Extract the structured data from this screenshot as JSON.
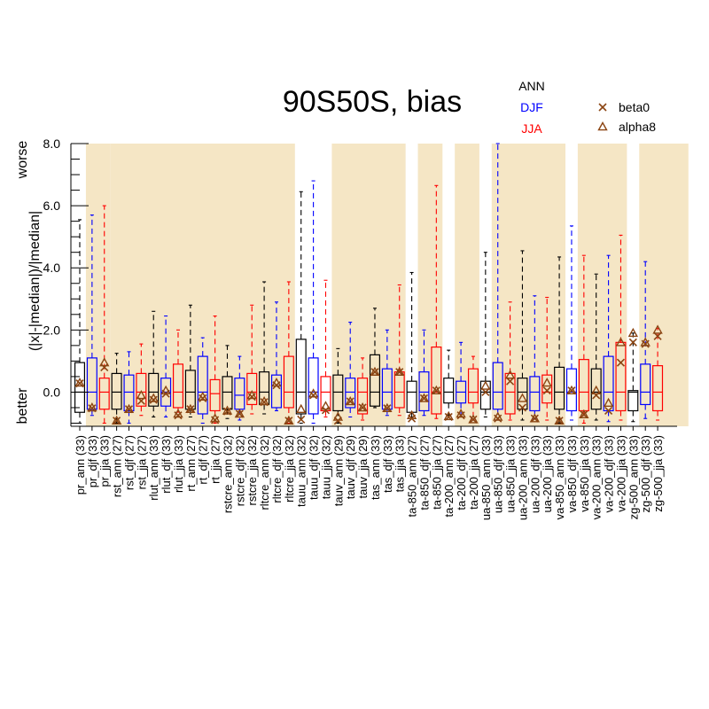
{
  "colors": {
    "ANN": "#000000",
    "DJF": "#0000ff",
    "JJA": "#ff0000",
    "shade": "#f5e6c5",
    "marker": "#8b4513"
  },
  "chart_data": {
    "type": "box",
    "title": "90S50S, bias",
    "ylabel": "(|x|-|median|)/|median|",
    "ylabel_top": "worse",
    "ylabel_bottom": "better",
    "ylim": [
      -1.1,
      8.0
    ],
    "yticks": [
      0.0,
      2.0,
      4.0,
      6.0,
      8.0
    ],
    "ytick_labels": [
      "0.0",
      "2.0",
      "4.0",
      "6.0",
      "8.0"
    ],
    "legend_seasons": [
      {
        "label": "ANN",
        "key": "ANN"
      },
      {
        "label": "DJF",
        "key": "DJF"
      },
      {
        "label": "JJA",
        "key": "JJA"
      }
    ],
    "legend_markers": [
      {
        "label": "beta0",
        "symbol": "x"
      },
      {
        "label": "alpha8",
        "symbol": "triangle"
      }
    ],
    "shaded_variable_groups": [
      [
        1,
        2
      ],
      [
        3,
        17
      ],
      [
        21,
        26
      ],
      [
        28,
        29
      ],
      [
        31,
        32
      ],
      [
        34,
        39
      ],
      [
        41,
        44
      ],
      [
        46,
        49
      ]
    ],
    "boxes": [
      {
        "label": "pr_ann (33)",
        "season": "ANN",
        "wl": -1.0,
        "q1": -0.65,
        "med": 0.0,
        "q3": 0.95,
        "wh": 5.55,
        "beta0": 0.28,
        "alpha8": 0.3
      },
      {
        "label": "pr_djf (33)",
        "season": "DJF",
        "wl": -0.75,
        "q1": -0.55,
        "med": 0.0,
        "q3": 1.1,
        "wh": 5.7,
        "beta0": -0.52,
        "alpha8": -0.5
      },
      {
        "label": "pr_jja (33)",
        "season": "JJA",
        "wl": -1.0,
        "q1": -0.55,
        "med": 0.0,
        "q3": 0.45,
        "wh": 6.0,
        "beta0": 0.8,
        "alpha8": 0.95
      },
      {
        "label": "rst_ann (27)",
        "season": "ANN",
        "wl": -1.0,
        "q1": -0.55,
        "med": 0.0,
        "q3": 0.6,
        "wh": 1.25,
        "beta0": -0.92,
        "alpha8": -0.92
      },
      {
        "label": "rst_djf (27)",
        "season": "DJF",
        "wl": -1.0,
        "q1": -0.6,
        "med": 0.0,
        "q3": 0.55,
        "wh": 1.3,
        "beta0": -0.55,
        "alpha8": -0.55
      },
      {
        "label": "rst_jja (27)",
        "season": "JJA",
        "wl": -0.75,
        "q1": -0.45,
        "med": 0.0,
        "q3": 0.6,
        "wh": 1.55,
        "beta0": -0.28,
        "alpha8": -0.1
      },
      {
        "label": "rlut_ann (33)",
        "season": "ANN",
        "wl": -0.8,
        "q1": -0.45,
        "med": 0.0,
        "q3": 0.6,
        "wh": 2.6,
        "beta0": -0.25,
        "alpha8": -0.2
      },
      {
        "label": "rlut_djf (33)",
        "season": "DJF",
        "wl": -0.8,
        "q1": -0.45,
        "med": 0.0,
        "q3": 0.45,
        "wh": 2.45,
        "beta0": -0.05,
        "alpha8": 0.05
      },
      {
        "label": "rlut_jja (33)",
        "season": "JJA",
        "wl": -0.8,
        "q1": -0.5,
        "med": 0.0,
        "q3": 0.9,
        "wh": 2.0,
        "beta0": -0.75,
        "alpha8": -0.7
      },
      {
        "label": "rt_ann (27)",
        "season": "ANN",
        "wl": -0.8,
        "q1": -0.55,
        "med": 0.0,
        "q3": 0.7,
        "wh": 2.8,
        "beta0": -0.55,
        "alpha8": -0.55
      },
      {
        "label": "rt_djf (27)",
        "season": "DJF",
        "wl": -1.0,
        "q1": -0.7,
        "med": 0.0,
        "q3": 1.15,
        "wh": 1.75,
        "beta0": -0.2,
        "alpha8": -0.15
      },
      {
        "label": "rt_jja (27)",
        "season": "JJA",
        "wl": -1.0,
        "q1": -0.6,
        "med": -0.05,
        "q3": 0.4,
        "wh": 2.45,
        "beta0": -0.9,
        "alpha8": -0.85
      },
      {
        "label": "rstcre_ann (32)",
        "season": "ANN",
        "wl": -0.85,
        "q1": -0.55,
        "med": 0.0,
        "q3": 0.5,
        "wh": 1.5,
        "beta0": -0.62,
        "alpha8": -0.6
      },
      {
        "label": "rstcre_djf (32)",
        "season": "DJF",
        "wl": -0.9,
        "q1": -0.55,
        "med": -0.1,
        "q3": 0.45,
        "wh": 1.15,
        "beta0": -0.7,
        "alpha8": -0.7
      },
      {
        "label": "rstcre_jja (32)",
        "season": "JJA",
        "wl": -0.7,
        "q1": -0.4,
        "med": 0.0,
        "q3": 0.6,
        "wh": 2.8,
        "beta0": -0.15,
        "alpha8": -0.1
      },
      {
        "label": "rltcre_ann (32)",
        "season": "ANN",
        "wl": -0.7,
        "q1": -0.4,
        "med": 0.0,
        "q3": 0.65,
        "wh": 3.55,
        "beta0": -0.32,
        "alpha8": -0.3
      },
      {
        "label": "rltcre_djf (32)",
        "season": "DJF",
        "wl": -0.6,
        "q1": -0.5,
        "med": 0.2,
        "q3": 0.55,
        "wh": 2.9,
        "beta0": 0.22,
        "alpha8": 0.3
      },
      {
        "label": "rltcre_jja (32)",
        "season": "JJA",
        "wl": -1.0,
        "q1": -0.5,
        "med": 0.0,
        "q3": 1.15,
        "wh": 3.55,
        "beta0": -0.92,
        "alpha8": -0.92
      },
      {
        "label": "tauu_ann (32)",
        "season": "ANN",
        "wl": -1.0,
        "q1": -0.7,
        "med": 0.0,
        "q3": 1.7,
        "wh": 6.45,
        "beta0": -0.88,
        "alpha8": -0.55
      },
      {
        "label": "tauu_djf (32)",
        "season": "DJF",
        "wl": -1.0,
        "q1": -0.7,
        "med": 0.0,
        "q3": 1.1,
        "wh": 6.8,
        "beta0": -0.1,
        "alpha8": -0.05
      },
      {
        "label": "tauu_jja (32)",
        "season": "JJA",
        "wl": -0.8,
        "q1": -0.6,
        "med": 0.0,
        "q3": 0.5,
        "wh": 3.6,
        "beta0": -0.58,
        "alpha8": -0.45
      },
      {
        "label": "tauv_ann (29)",
        "season": "ANN",
        "wl": -1.0,
        "q1": -0.6,
        "med": 0.0,
        "q3": 0.55,
        "wh": 1.4,
        "beta0": -0.92,
        "alpha8": -0.8
      },
      {
        "label": "tauv_djf (29)",
        "season": "DJF",
        "wl": -0.8,
        "q1": -0.5,
        "med": 0.0,
        "q3": 0.45,
        "wh": 2.25,
        "beta0": -0.3,
        "alpha8": -0.3
      },
      {
        "label": "tauv_jja (29)",
        "season": "JJA",
        "wl": -0.9,
        "q1": -0.7,
        "med": 0.0,
        "q3": 0.45,
        "wh": 1.1,
        "beta0": -0.5,
        "alpha8": -0.5
      },
      {
        "label": "tas_ann (33)",
        "season": "ANN",
        "wl": -0.5,
        "q1": -0.45,
        "med": 0.0,
        "q3": 1.2,
        "wh": 2.7,
        "beta0": 0.65,
        "alpha8": 0.65
      },
      {
        "label": "tas_djf (33)",
        "season": "DJF",
        "wl": -0.75,
        "q1": -0.55,
        "med": 0.0,
        "q3": 0.75,
        "wh": 2.0,
        "beta0": -0.52,
        "alpha8": -0.52
      },
      {
        "label": "tas_jja (33)",
        "season": "JJA",
        "wl": -0.75,
        "q1": -0.5,
        "med": 0.0,
        "q3": 0.65,
        "wh": 3.45,
        "beta0": 0.65,
        "alpha8": 0.65
      },
      {
        "label": "ta-850_ann (27)",
        "season": "ANN",
        "wl": -0.8,
        "q1": -0.65,
        "med": 0.0,
        "q3": 0.35,
        "wh": 3.85,
        "beta0": -0.85,
        "alpha8": -0.75
      },
      {
        "label": "ta-850_djf (27)",
        "season": "DJF",
        "wl": -0.75,
        "q1": -0.6,
        "med": 0.0,
        "q3": 0.65,
        "wh": 2.0,
        "beta0": -0.2,
        "alpha8": -0.2
      },
      {
        "label": "ta-850_jja (27)",
        "season": "JJA",
        "wl": -0.85,
        "q1": -0.7,
        "med": 0.0,
        "q3": 1.45,
        "wh": 6.65,
        "beta0": 0.05,
        "alpha8": 0.05
      },
      {
        "label": "ta-200_ann (27)",
        "season": "ANN",
        "wl": -0.75,
        "q1": -0.35,
        "med": 0.0,
        "q3": 0.45,
        "wh": 1.35,
        "beta0": -0.8,
        "alpha8": -0.78
      },
      {
        "label": "ta-200_djf (27)",
        "season": "DJF",
        "wl": -0.8,
        "q1": -0.35,
        "med": 0.0,
        "q3": 0.35,
        "wh": 1.6,
        "beta0": -0.75,
        "alpha8": -0.7
      },
      {
        "label": "ta-200_jja (27)",
        "season": "JJA",
        "wl": -0.9,
        "q1": -0.35,
        "med": 0.0,
        "q3": 0.75,
        "wh": 1.15,
        "beta0": -0.88,
        "alpha8": -0.88
      },
      {
        "label": "ua-850_ann (33)",
        "season": "ANN",
        "wl": -0.8,
        "q1": -0.55,
        "med": 0.0,
        "q3": 0.35,
        "wh": 4.5,
        "beta0": 0.0,
        "alpha8": 0.2
      },
      {
        "label": "ua-850_djf (33)",
        "season": "DJF",
        "wl": -0.9,
        "q1": -0.55,
        "med": 0.0,
        "q3": 0.95,
        "wh": 8.0,
        "beta0": -0.85,
        "alpha8": -0.8
      },
      {
        "label": "ua-850_jja (33)",
        "season": "JJA",
        "wl": -0.9,
        "q1": -0.7,
        "med": 0.0,
        "q3": 0.6,
        "wh": 2.9,
        "beta0": 0.35,
        "alpha8": 0.55
      },
      {
        "label": "ua-200_ann (33)",
        "season": "ANN",
        "wl": -0.9,
        "q1": -0.55,
        "med": 0.0,
        "q3": 0.45,
        "wh": 4.55,
        "beta0": -0.5,
        "alpha8": -0.2
      },
      {
        "label": "ua-200_djf (33)",
        "season": "DJF",
        "wl": -0.85,
        "q1": -0.6,
        "med": 0.0,
        "q3": 0.5,
        "wh": 3.1,
        "beta0": -0.85,
        "alpha8": -0.85
      },
      {
        "label": "ua-200_jja (33)",
        "season": "JJA",
        "wl": -0.9,
        "q1": -0.35,
        "med": 0.0,
        "q3": 0.55,
        "wh": 3.05,
        "beta0": 0.05,
        "alpha8": 0.3
      },
      {
        "label": "va-850_ann (33)",
        "season": "ANN",
        "wl": -1.0,
        "q1": -0.55,
        "med": 0.0,
        "q3": 0.8,
        "wh": 4.35,
        "beta0": -0.92,
        "alpha8": -0.92
      },
      {
        "label": "va-850_djf (33)",
        "season": "DJF",
        "wl": -0.9,
        "q1": -0.6,
        "med": 0.0,
        "q3": 0.75,
        "wh": 5.35,
        "beta0": 0.05,
        "alpha8": 0.05
      },
      {
        "label": "va-850_jja (33)",
        "season": "JJA",
        "wl": -1.0,
        "q1": -0.6,
        "med": 0.0,
        "q3": 1.05,
        "wh": 4.4,
        "beta0": -0.72,
        "alpha8": -0.72
      },
      {
        "label": "va-200_ann (33)",
        "season": "ANN",
        "wl": -0.9,
        "q1": -0.55,
        "med": 0.0,
        "q3": 0.75,
        "wh": 3.8,
        "beta0": -0.1,
        "alpha8": 0.05
      },
      {
        "label": "va-200_djf (33)",
        "season": "DJF",
        "wl": -0.95,
        "q1": -0.6,
        "med": 0.0,
        "q3": 1.15,
        "wh": 4.4,
        "beta0": -0.6,
        "alpha8": -0.35
      },
      {
        "label": "va-200_jja (33)",
        "season": "JJA",
        "wl": -0.9,
        "q1": -0.6,
        "med": 0.0,
        "q3": 1.6,
        "wh": 5.05,
        "beta0": 0.95,
        "alpha8": 1.6
      },
      {
        "label": "zg-500_ann (33)",
        "season": "ANN",
        "wl": -0.95,
        "q1": -0.6,
        "med": 0.0,
        "q3": 0.05,
        "wh": 1.9,
        "beta0": 1.6,
        "alpha8": 1.9
      },
      {
        "label": "zg-500_djf (33)",
        "season": "DJF",
        "wl": -0.85,
        "q1": -0.4,
        "med": 0.0,
        "q3": 0.9,
        "wh": 4.2,
        "beta0": 1.55,
        "alpha8": 1.6
      },
      {
        "label": "zg-500_jja (33)",
        "season": "JJA",
        "wl": -0.9,
        "q1": -0.6,
        "med": 0.0,
        "q3": 0.85,
        "wh": 2.05,
        "beta0": 1.8,
        "alpha8": 2.0
      }
    ]
  }
}
